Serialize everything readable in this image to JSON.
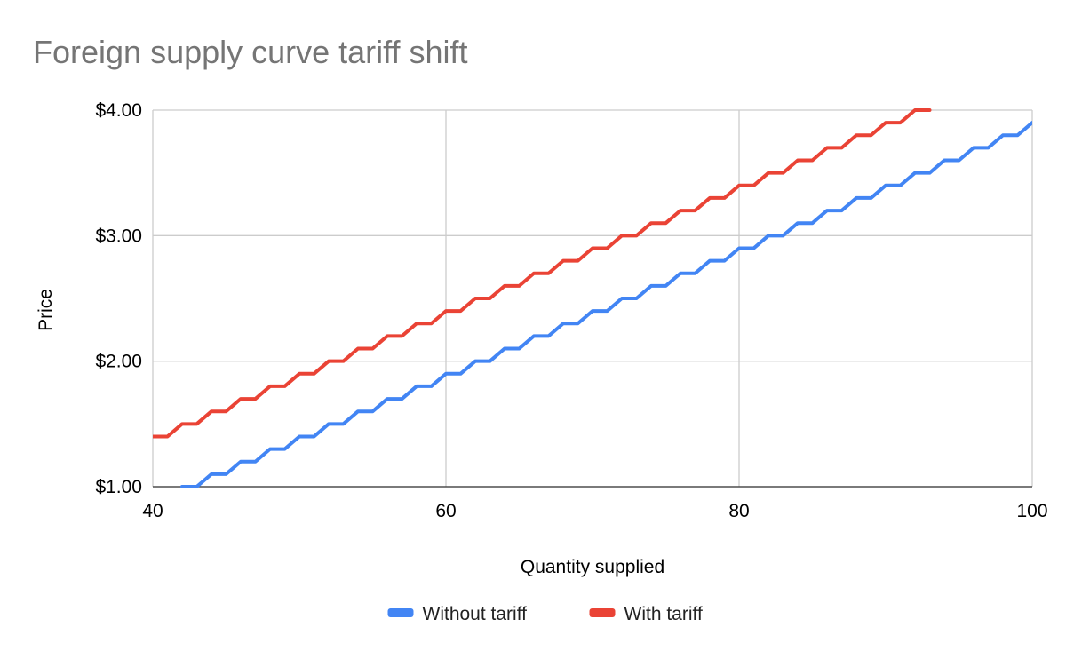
{
  "chart_data": {
    "type": "line",
    "title": "Foreign supply curve tariff shift",
    "xlabel": "Quantity supplied",
    "ylabel": "Price",
    "xlim": [
      40,
      100
    ],
    "ylim": [
      1,
      4
    ],
    "x_ticks": [
      40,
      60,
      80,
      100
    ],
    "x_tick_labels": [
      "40",
      "60",
      "80",
      "100"
    ],
    "y_ticks": [
      1,
      2,
      3,
      4
    ],
    "y_tick_labels": [
      "$1.00",
      "$2.00",
      "$3.00",
      "$4.00"
    ],
    "grid": true,
    "legend_position": "bottom",
    "series": [
      {
        "name": "Without tariff",
        "color": "#4285f4",
        "x": [
          42,
          43,
          44,
          45,
          46,
          47,
          48,
          49,
          50,
          51,
          52,
          53,
          54,
          55,
          56,
          57,
          58,
          59,
          60,
          61,
          62,
          63,
          64,
          65,
          66,
          67,
          68,
          69,
          70,
          71,
          72,
          73,
          74,
          75,
          76,
          77,
          78,
          79,
          80,
          81,
          82,
          83,
          84,
          85,
          86,
          87,
          88,
          89,
          90,
          91,
          92,
          93,
          94,
          95,
          96,
          97,
          98,
          99,
          100
        ],
        "values": [
          1.0,
          1.0,
          1.1,
          1.1,
          1.2,
          1.2,
          1.3,
          1.3,
          1.4,
          1.4,
          1.5,
          1.5,
          1.6,
          1.6,
          1.7,
          1.7,
          1.8,
          1.8,
          1.9,
          1.9,
          2.0,
          2.0,
          2.1,
          2.1,
          2.2,
          2.2,
          2.3,
          2.3,
          2.4,
          2.4,
          2.5,
          2.5,
          2.6,
          2.6,
          2.7,
          2.7,
          2.8,
          2.8,
          2.9,
          2.9,
          3.0,
          3.0,
          3.1,
          3.1,
          3.2,
          3.2,
          3.3,
          3.3,
          3.4,
          3.4,
          3.5,
          3.5,
          3.6,
          3.6,
          3.7,
          3.7,
          3.8,
          3.8,
          3.9
        ]
      },
      {
        "name": "With tariff",
        "color": "#ea4335",
        "x": [
          40,
          41,
          42,
          43,
          44,
          45,
          46,
          47,
          48,
          49,
          50,
          51,
          52,
          53,
          54,
          55,
          56,
          57,
          58,
          59,
          60,
          61,
          62,
          63,
          64,
          65,
          66,
          67,
          68,
          69,
          70,
          71,
          72,
          73,
          74,
          75,
          76,
          77,
          78,
          79,
          80,
          81,
          82,
          83,
          84,
          85,
          86,
          87,
          88,
          89,
          90,
          91,
          92,
          93
        ],
        "values": [
          1.4,
          1.4,
          1.5,
          1.5,
          1.6,
          1.6,
          1.7,
          1.7,
          1.8,
          1.8,
          1.9,
          1.9,
          2.0,
          2.0,
          2.1,
          2.1,
          2.2,
          2.2,
          2.3,
          2.3,
          2.4,
          2.4,
          2.5,
          2.5,
          2.6,
          2.6,
          2.7,
          2.7,
          2.8,
          2.8,
          2.9,
          2.9,
          3.0,
          3.0,
          3.1,
          3.1,
          3.2,
          3.2,
          3.3,
          3.3,
          3.4,
          3.4,
          3.5,
          3.5,
          3.6,
          3.6,
          3.7,
          3.7,
          3.8,
          3.8,
          3.9,
          3.9,
          4.0,
          4.0
        ]
      }
    ]
  }
}
